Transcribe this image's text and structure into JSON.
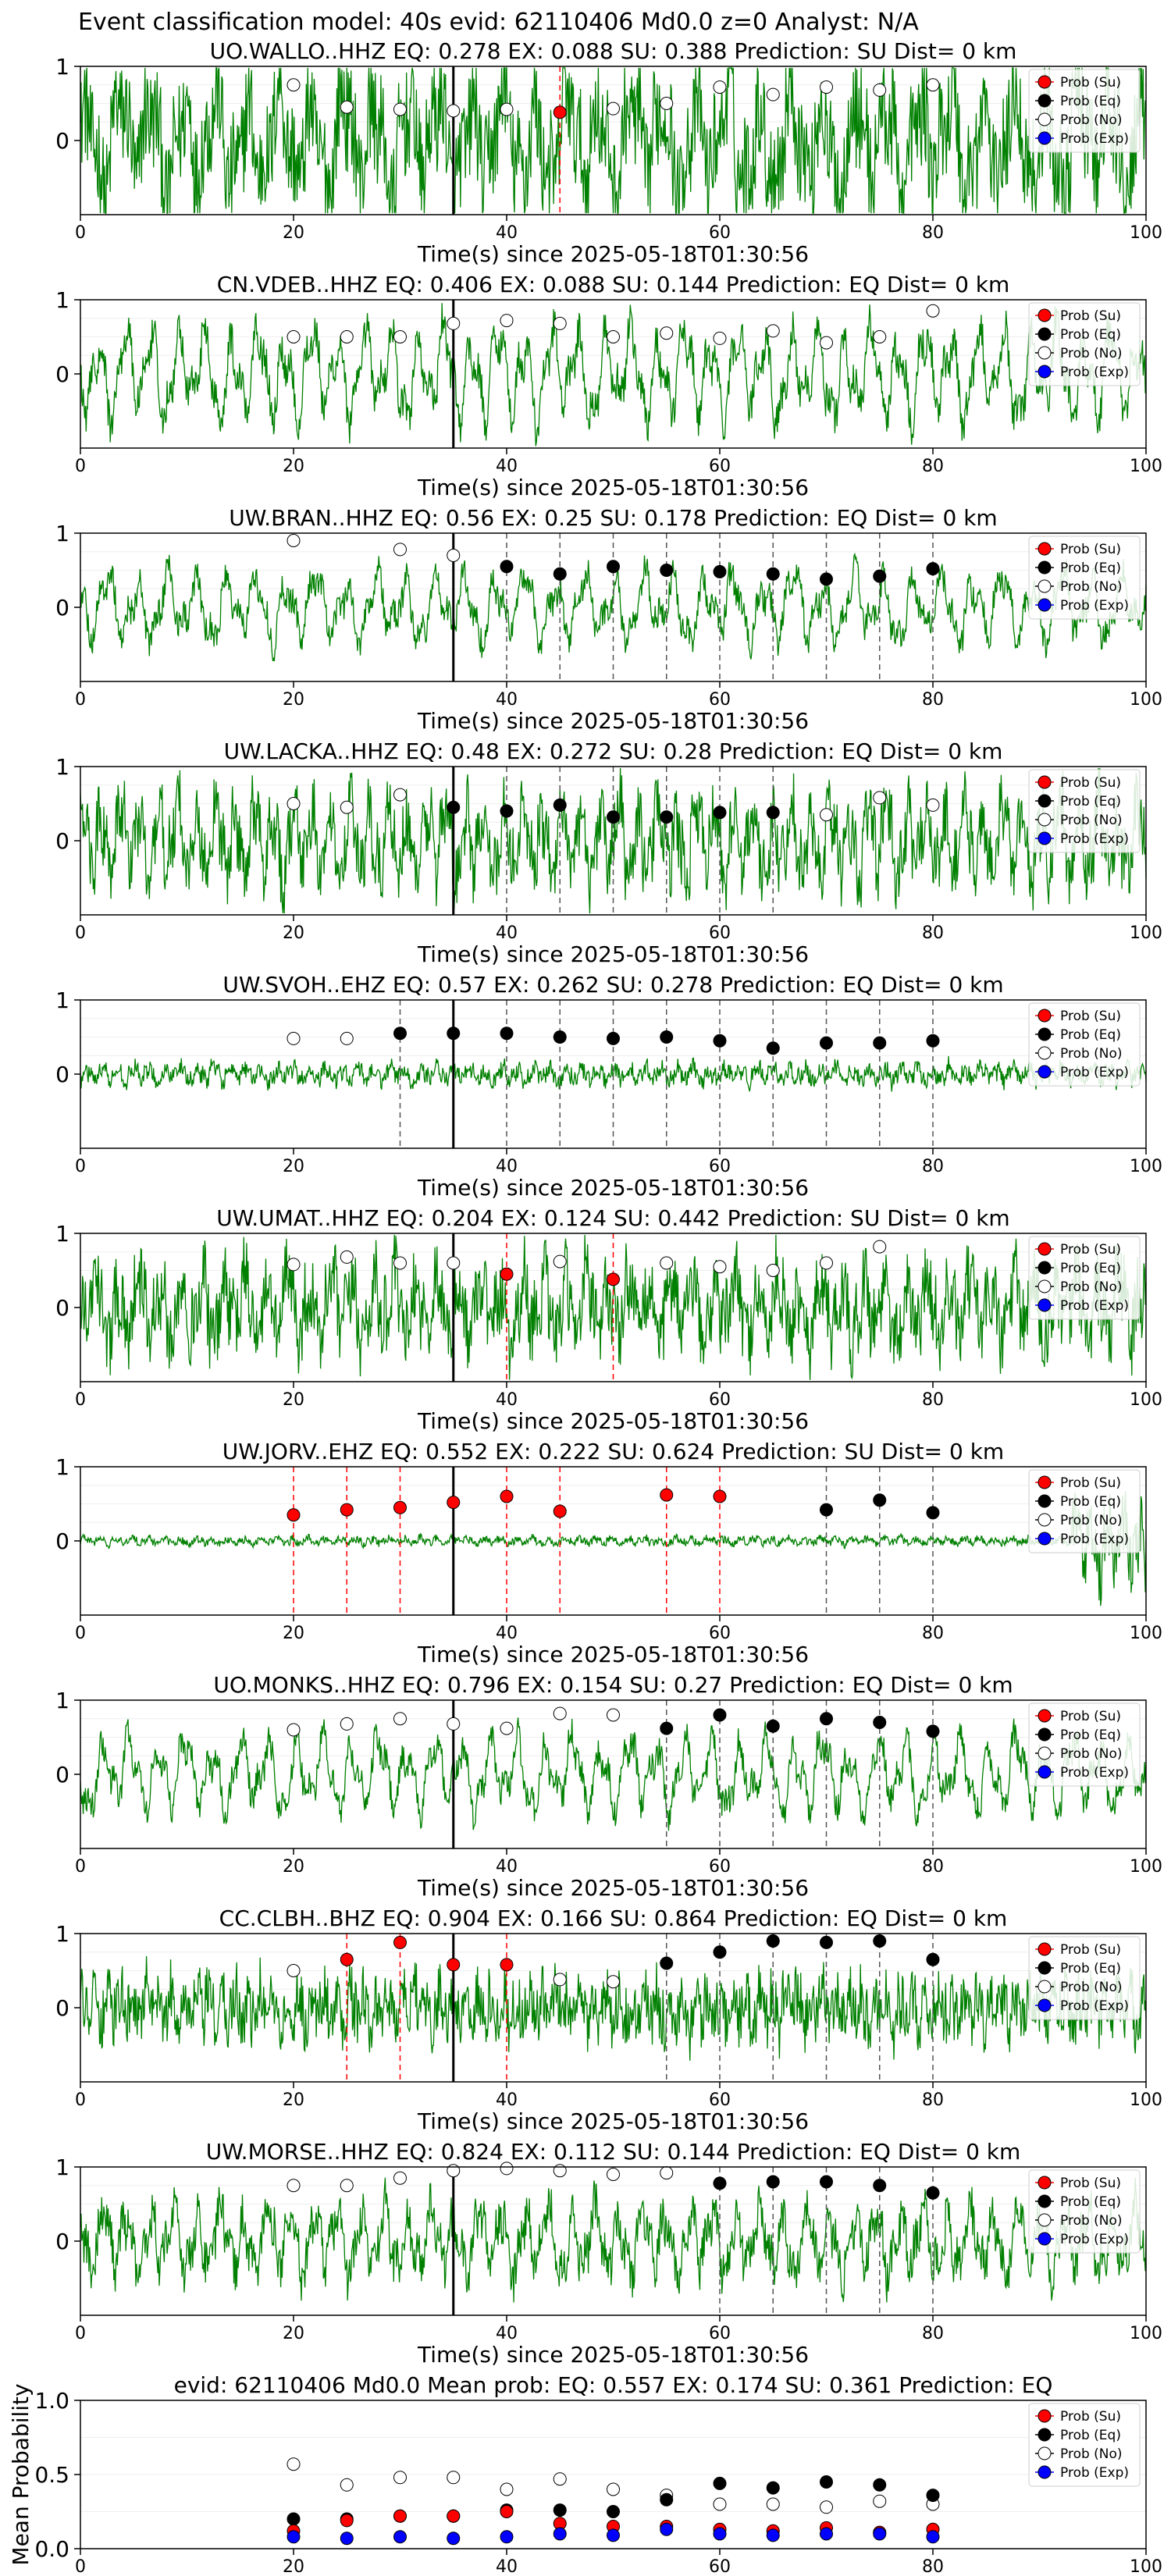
{
  "figure": {
    "suptitle": "Event classification model: 40s evid: 62110406 Md0.0 z=0 Analyst: N/A",
    "colors": {
      "waveform": "#008000",
      "su": "#ff0000",
      "eq": "#000000",
      "no": "#ffffff",
      "exp": "#0000ff",
      "eq_line": "#555555",
      "su_line": "#ff0000",
      "onset_line": "#000000"
    },
    "legend_labels": [
      "Prob (Su)",
      "Prob (Eq)",
      "Prob (No)",
      "Prob (Exp)"
    ],
    "legend_position": "upper right"
  },
  "chart_data": [
    {
      "type": "line",
      "station": "UO.WALLO..HHZ",
      "title": "UO.WALLO..HHZ   EQ: 0.278  EX: 0.088  SU: 0.388   Prediction: SU    Dist= 0 km",
      "xlabel": "Time(s) since 2025-05-18T01:30:56",
      "xlim": [
        0,
        100
      ],
      "ylim": [
        -1,
        1
      ],
      "yticks": [
        0,
        1
      ],
      "xticks": [
        0,
        20,
        40,
        60,
        80,
        100
      ],
      "onset": 35,
      "amplitude": 0.8,
      "noise": 0.75,
      "period": 3.0,
      "windows": [
        20,
        25,
        30,
        35,
        40,
        45,
        50,
        55,
        60,
        65,
        70,
        75,
        80
      ],
      "probs": [
        0.75,
        0.45,
        0.42,
        0.4,
        0.42,
        0.38,
        0.43,
        0.5,
        0.72,
        0.62,
        0.72,
        0.68,
        0.75
      ],
      "classes": [
        "no",
        "no",
        "no",
        "no",
        "no",
        "su",
        "no",
        "no",
        "no",
        "no",
        "no",
        "no",
        "no"
      ]
    },
    {
      "type": "line",
      "station": "CN.VDEB..HHZ",
      "title": "CN.VDEB..HHZ   EQ: 0.406  EX: 0.088  SU: 0.144   Prediction: EQ    Dist= 0 km",
      "xlabel": "Time(s) since 2025-05-18T01:30:56",
      "xlim": [
        0,
        100
      ],
      "ylim": [
        -1,
        1
      ],
      "yticks": [
        0,
        1
      ],
      "xticks": [
        0,
        20,
        40,
        60,
        80,
        100
      ],
      "onset": 35,
      "amplitude": 0.75,
      "noise": 0.25,
      "period": 2.5,
      "windows": [
        20,
        25,
        30,
        35,
        40,
        45,
        50,
        55,
        60,
        65,
        70,
        75,
        80
      ],
      "probs": [
        0.5,
        0.5,
        0.5,
        0.68,
        0.72,
        0.68,
        0.5,
        0.55,
        0.48,
        0.58,
        0.42,
        0.5,
        0.85
      ],
      "classes": [
        "no",
        "no",
        "no",
        "no",
        "no",
        "no",
        "no",
        "no",
        "no",
        "no",
        "no",
        "no",
        "no"
      ]
    },
    {
      "type": "line",
      "station": "UW.BRAN..HHZ",
      "title": "UW.BRAN..HHZ   EQ: 0.56  EX: 0.25  SU: 0.178    Prediction: EQ    Dist= 0 km",
      "xlabel": "Time(s) since 2025-05-18T01:30:56",
      "xlim": [
        0,
        100
      ],
      "ylim": [
        -1,
        1
      ],
      "yticks": [
        0,
        1
      ],
      "xticks": [
        0,
        20,
        40,
        60,
        80,
        100
      ],
      "onset": 35,
      "amplitude": 0.55,
      "noise": 0.2,
      "period": 2.8,
      "windows": [
        20,
        30,
        35,
        40,
        45,
        50,
        55,
        60,
        65,
        70,
        75,
        80
      ],
      "probs": [
        0.9,
        0.78,
        0.7,
        0.55,
        0.45,
        0.55,
        0.5,
        0.48,
        0.45,
        0.38,
        0.42,
        0.52
      ],
      "classes": [
        "no",
        "no",
        "no",
        "eq",
        "eq",
        "eq",
        "eq",
        "eq",
        "eq",
        "eq",
        "eq",
        "eq"
      ]
    },
    {
      "type": "line",
      "station": "UW.LACKA..HHZ",
      "title": "UW.LACKA..HHZ   EQ: 0.48  EX: 0.272  SU: 0.28   Prediction: EQ    Dist= 0 km",
      "xlabel": "Time(s) since 2025-05-18T01:30:56",
      "xlim": [
        0,
        100
      ],
      "ylim": [
        -1,
        1
      ],
      "yticks": [
        0,
        1
      ],
      "xticks": [
        0,
        20,
        40,
        60,
        80,
        100
      ],
      "onset": 35,
      "amplitude": 0.65,
      "noise": 0.45,
      "period": 1.8,
      "windows": [
        20,
        25,
        30,
        35,
        40,
        45,
        50,
        55,
        60,
        65,
        70,
        75,
        80
      ],
      "probs": [
        0.5,
        0.45,
        0.62,
        0.45,
        0.4,
        0.48,
        0.32,
        0.32,
        0.38,
        0.38,
        0.35,
        0.58,
        0.48
      ],
      "classes": [
        "no",
        "no",
        "no",
        "eq",
        "eq",
        "eq",
        "eq",
        "eq",
        "eq",
        "eq",
        "no",
        "no",
        "no"
      ]
    },
    {
      "type": "line",
      "station": "UW.SVOH..EHZ",
      "title": "UW.SVOH..EHZ   EQ: 0.57  EX: 0.262  SU: 0.278    Prediction: EQ    Dist= 0 km",
      "xlabel": "Time(s) since 2025-05-18T01:30:56",
      "xlim": [
        0,
        100
      ],
      "ylim": [
        -1,
        1
      ],
      "yticks": [
        0,
        1
      ],
      "xticks": [
        0,
        20,
        40,
        60,
        80,
        100
      ],
      "onset": 35,
      "amplitude": 0.12,
      "noise": 0.12,
      "period": 1.5,
      "windows": [
        20,
        25,
        30,
        35,
        40,
        45,
        50,
        55,
        60,
        65,
        70,
        75,
        80
      ],
      "probs": [
        0.48,
        0.48,
        0.55,
        0.55,
        0.55,
        0.5,
        0.48,
        0.5,
        0.45,
        0.35,
        0.42,
        0.42,
        0.45
      ],
      "classes": [
        "no",
        "no",
        "eq",
        "eq",
        "eq",
        "eq",
        "eq",
        "eq",
        "eq",
        "eq",
        "eq",
        "eq",
        "eq"
      ]
    },
    {
      "type": "line",
      "station": "UW.UMAT..HHZ",
      "title": "UW.UMAT..HHZ   EQ: 0.204  EX: 0.124  SU: 0.442   Prediction: SU    Dist= 0 km",
      "xlabel": "Time(s) since 2025-05-18T01:30:56",
      "xlim": [
        0,
        100
      ],
      "ylim": [
        -1,
        1
      ],
      "yticks": [
        0,
        1
      ],
      "xticks": [
        0,
        20,
        40,
        60,
        80,
        100
      ],
      "onset": 35,
      "amplitude": 0.55,
      "noise": 0.5,
      "period": 2.0,
      "windows": [
        20,
        25,
        30,
        35,
        40,
        45,
        50,
        55,
        60,
        65,
        70,
        75
      ],
      "probs": [
        0.58,
        0.68,
        0.6,
        0.6,
        0.45,
        0.62,
        0.38,
        0.6,
        0.55,
        0.5,
        0.6,
        0.82
      ],
      "classes": [
        "no",
        "no",
        "no",
        "no",
        "su",
        "no",
        "su",
        "no",
        "no",
        "no",
        "no",
        "no"
      ]
    },
    {
      "type": "line",
      "station": "UW.JORV..EHZ",
      "title": "UW.JORV..EHZ   EQ: 0.552  EX: 0.222  SU: 0.624    Prediction: SU    Dist= 0 km",
      "xlabel": "Time(s) since 2025-05-18T01:30:56",
      "xlim": [
        0,
        100
      ],
      "ylim": [
        -1,
        1
      ],
      "yticks": [
        0,
        1
      ],
      "xticks": [
        0,
        20,
        40,
        60,
        80,
        100
      ],
      "onset": 35,
      "amplitude": 0.05,
      "noise": 0.05,
      "period": 1.5,
      "windows": [
        20,
        25,
        30,
        35,
        40,
        45,
        55,
        60,
        70,
        75,
        80
      ],
      "probs": [
        0.35,
        0.42,
        0.45,
        0.52,
        0.6,
        0.4,
        0.62,
        0.6,
        0.42,
        0.55,
        0.38
      ],
      "classes": [
        "su",
        "su",
        "su",
        "su",
        "su",
        "su",
        "su",
        "su",
        "eq",
        "eq",
        "eq"
      ]
    },
    {
      "type": "line",
      "station": "UO.MONKS..HHZ",
      "title": "UO.MONKS..HHZ   EQ: 0.796  EX: 0.154  SU: 0.27    Prediction: EQ    Dist= 0 km",
      "xlabel": "Time(s) since 2025-05-18T01:30:56",
      "xlim": [
        0,
        100
      ],
      "ylim": [
        -1,
        1
      ],
      "yticks": [
        0,
        1
      ],
      "xticks": [
        0,
        20,
        40,
        60,
        80,
        100
      ],
      "onset": 35,
      "amplitude": 0.6,
      "noise": 0.2,
      "period": 2.6,
      "windows": [
        20,
        25,
        30,
        35,
        40,
        45,
        50,
        55,
        60,
        65,
        70,
        75,
        80
      ],
      "probs": [
        0.6,
        0.68,
        0.75,
        0.68,
        0.62,
        0.82,
        0.8,
        0.62,
        0.8,
        0.65,
        0.75,
        0.7,
        0.58
      ],
      "classes": [
        "no",
        "no",
        "no",
        "no",
        "no",
        "no",
        "no",
        "eq",
        "eq",
        "eq",
        "eq",
        "eq",
        "eq"
      ]
    },
    {
      "type": "line",
      "station": "CC.CLBH..BHZ",
      "title": "CC.CLBH..BHZ   EQ: 0.904  EX: 0.166  SU: 0.864    Prediction: EQ    Dist= 0 km",
      "xlabel": "Time(s) since 2025-05-18T01:30:56",
      "xlim": [
        0,
        100
      ],
      "ylim": [
        -1,
        1
      ],
      "yticks": [
        0,
        1
      ],
      "xticks": [
        0,
        20,
        40,
        60,
        80,
        100
      ],
      "onset": 35,
      "amplitude": 0.3,
      "noise": 0.4,
      "period": 1.2,
      "windows": [
        20,
        25,
        30,
        35,
        40,
        45,
        50,
        55,
        60,
        65,
        70,
        75,
        80
      ],
      "probs": [
        0.5,
        0.65,
        0.88,
        0.58,
        0.58,
        0.38,
        0.35,
        0.6,
        0.75,
        0.9,
        0.88,
        0.9,
        0.65
      ],
      "classes": [
        "no",
        "su",
        "su",
        "su",
        "su",
        "no",
        "no",
        "eq",
        "eq",
        "eq",
        "eq",
        "eq",
        "eq"
      ]
    },
    {
      "type": "line",
      "station": "UW.MORSE..HHZ",
      "title": "UW.MORSE..HHZ   EQ: 0.824  EX: 0.112  SU: 0.144    Prediction: EQ    Dist= 0 km",
      "xlabel": "Time(s) since 2025-05-18T01:30:56",
      "xlim": [
        0,
        100
      ],
      "ylim": [
        -1,
        1
      ],
      "yticks": [
        0,
        1
      ],
      "xticks": [
        0,
        20,
        40,
        60,
        80,
        100
      ],
      "onset": 35,
      "amplitude": 0.55,
      "noise": 0.3,
      "period": 2.2,
      "windows": [
        20,
        25,
        30,
        35,
        40,
        45,
        50,
        55,
        60,
        65,
        70,
        75,
        80
      ],
      "probs": [
        0.75,
        0.75,
        0.85,
        0.95,
        0.98,
        0.95,
        0.9,
        0.92,
        0.78,
        0.8,
        0.8,
        0.75,
        0.65
      ],
      "classes": [
        "no",
        "no",
        "no",
        "no",
        "no",
        "no",
        "no",
        "no",
        "eq",
        "eq",
        "eq",
        "eq",
        "eq"
      ]
    },
    {
      "type": "scatter",
      "title": "evid: 62110406   Md0.0    Mean prob:    EQ: 0.557  EX: 0.174  SU: 0.361    Prediction: EQ",
      "ylabel": "Mean Probability",
      "xlim": [
        0,
        100
      ],
      "ylim": [
        0,
        1
      ],
      "yticks": [
        0.0,
        0.5,
        1.0
      ],
      "xticks": [
        0,
        20,
        40,
        60,
        80,
        100
      ],
      "x": [
        20,
        25,
        30,
        35,
        40,
        45,
        50,
        55,
        60,
        65,
        70,
        75,
        80
      ],
      "series": [
        {
          "name": "Prob (No)",
          "color": "#ffffff",
          "values": [
            0.57,
            0.43,
            0.48,
            0.48,
            0.4,
            0.47,
            0.4,
            0.36,
            0.3,
            0.3,
            0.28,
            0.32,
            0.3
          ]
        },
        {
          "name": "Prob (Eq)",
          "color": "#000000",
          "values": [
            0.2,
            0.2,
            0.22,
            0.22,
            0.26,
            0.26,
            0.25,
            0.33,
            0.44,
            0.41,
            0.45,
            0.43,
            0.36
          ]
        },
        {
          "name": "Prob (Su)",
          "color": "#ff0000",
          "values": [
            0.12,
            0.19,
            0.22,
            0.22,
            0.25,
            0.17,
            0.15,
            0.15,
            0.13,
            0.12,
            0.14,
            0.11,
            0.13
          ]
        },
        {
          "name": "Prob (Exp)",
          "color": "#0000ff",
          "values": [
            0.08,
            0.07,
            0.08,
            0.07,
            0.08,
            0.1,
            0.09,
            0.13,
            0.1,
            0.09,
            0.1,
            0.1,
            0.08
          ]
        }
      ]
    }
  ]
}
